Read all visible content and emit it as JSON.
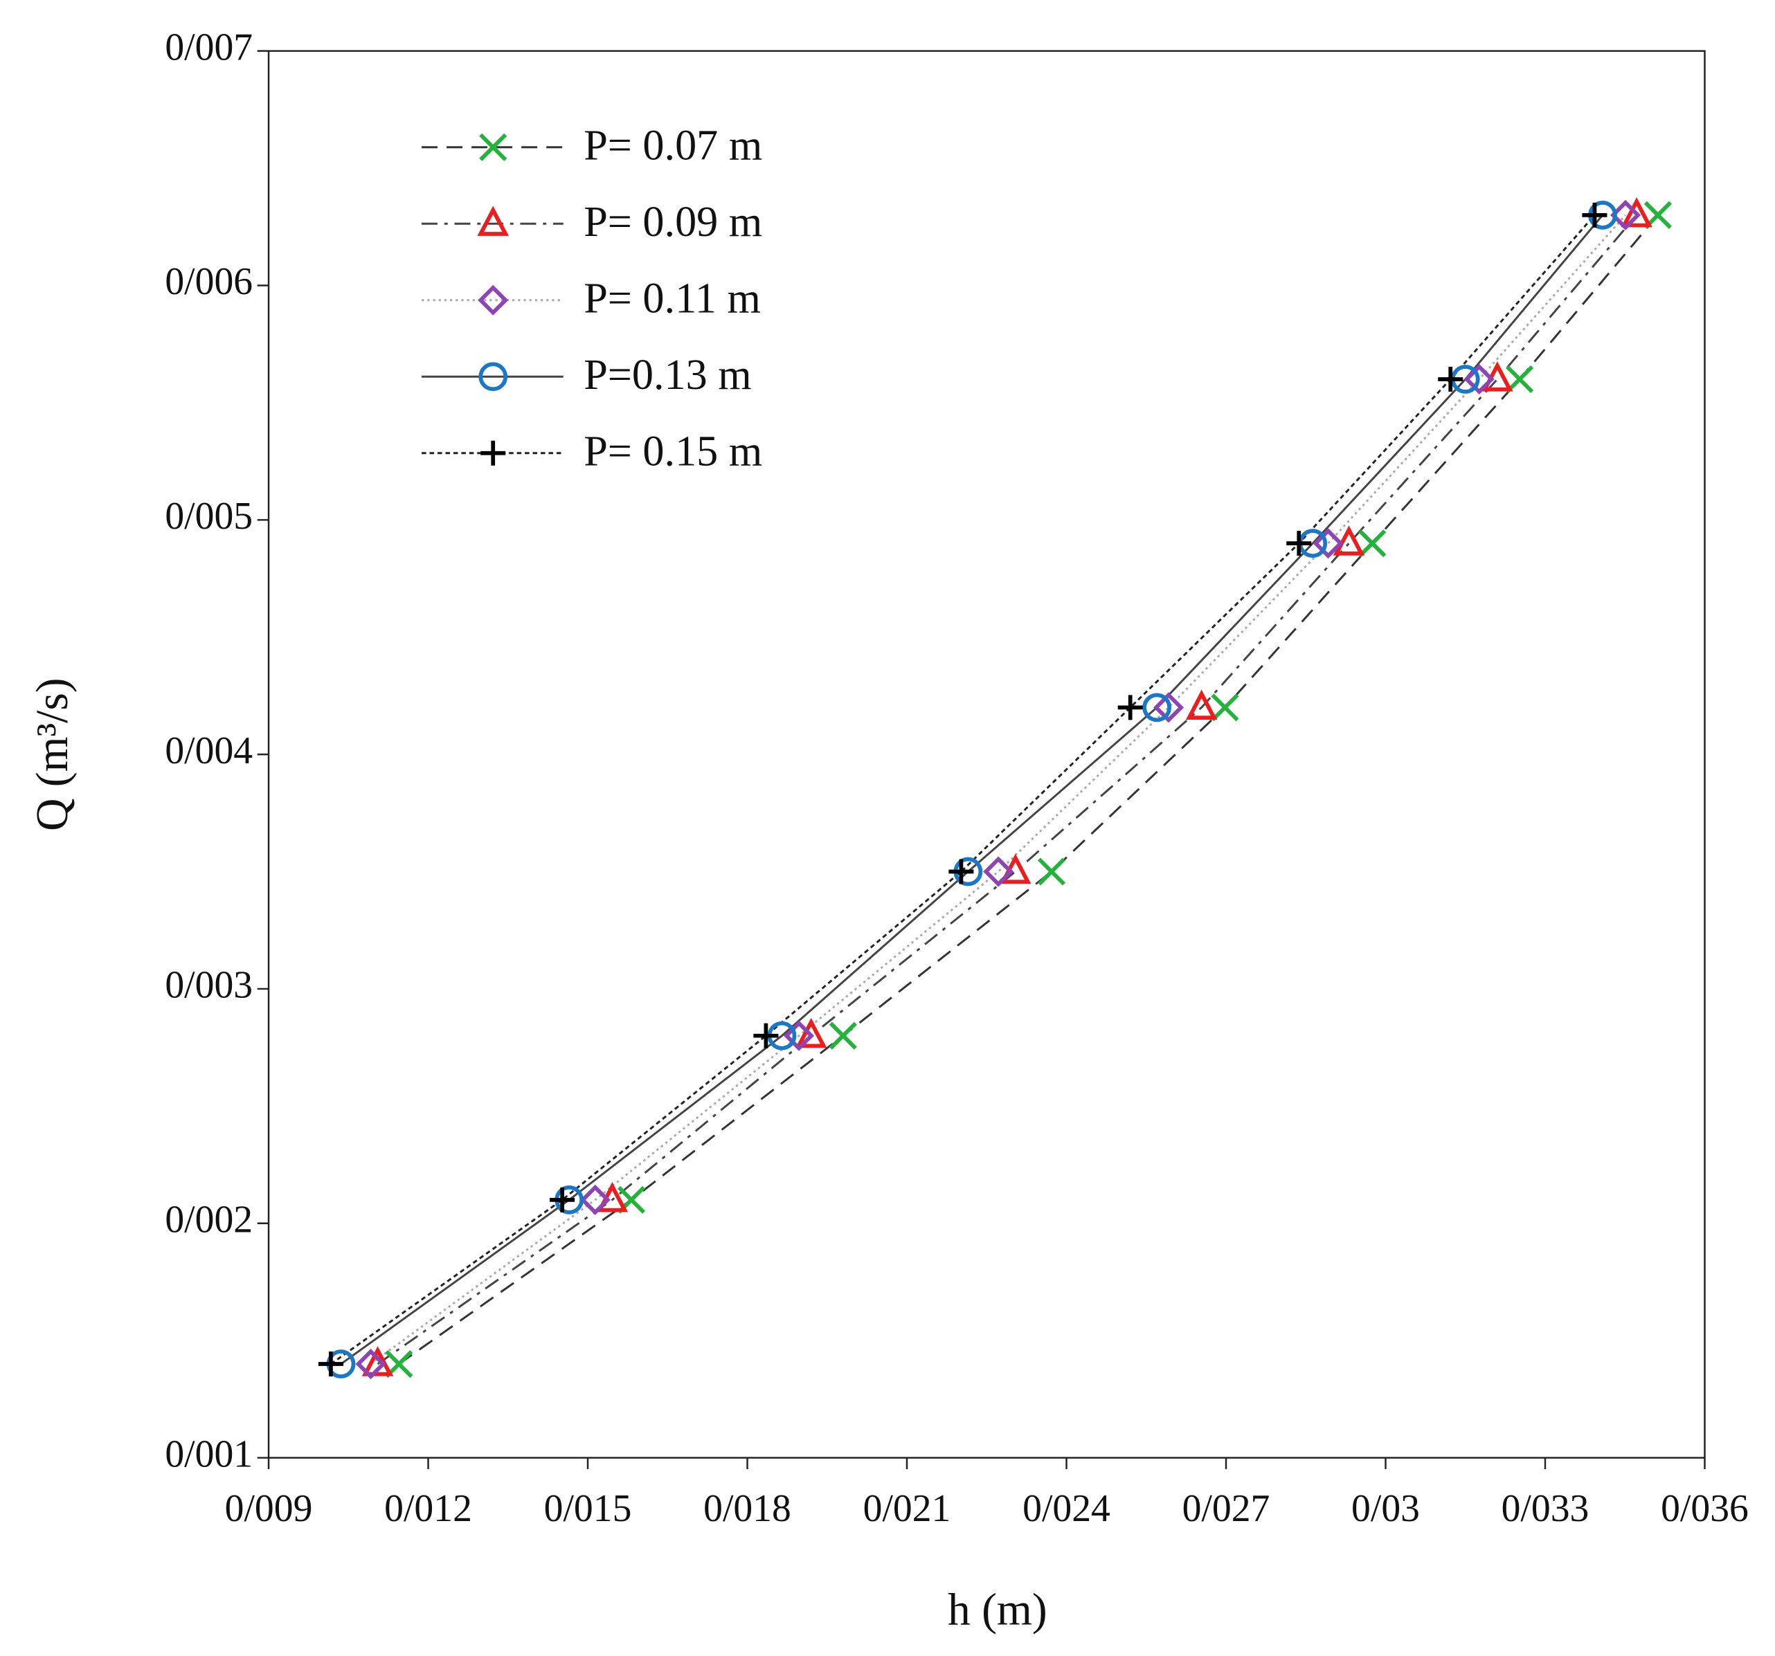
{
  "chart_data": {
    "type": "line",
    "xlabel": "h (m)",
    "ylabel": "Q (m³/s)",
    "xlim": [
      0.009,
      0.036
    ],
    "xticks": [
      {
        "value": 0.009,
        "label": "0/009"
      },
      {
        "value": 0.012,
        "label": "0/012"
      },
      {
        "value": 0.015,
        "label": "0/015"
      },
      {
        "value": 0.018,
        "label": "0/018"
      },
      {
        "value": 0.021,
        "label": "0/021"
      },
      {
        "value": 0.024,
        "label": "0/024"
      },
      {
        "value": 0.027,
        "label": "0/027"
      },
      {
        "value": 0.03,
        "label": "0/03"
      },
      {
        "value": 0.033,
        "label": "0/033"
      },
      {
        "value": 0.036,
        "label": "0/036"
      }
    ],
    "ylim": [
      0.001,
      0.007
    ],
    "yticks": [
      {
        "value": 0.001,
        "label": "0/001"
      },
      {
        "value": 0.002,
        "label": "0/002"
      },
      {
        "value": 0.003,
        "label": "0/003"
      },
      {
        "value": 0.004,
        "label": "0/004"
      },
      {
        "value": 0.005,
        "label": "0/005"
      },
      {
        "value": 0.006,
        "label": "0/006"
      },
      {
        "value": 0.007,
        "label": "0/007"
      }
    ],
    "legend": "upper left",
    "series": [
      {
        "name": "P= 0.07 m",
        "color": "#22b33a",
        "marker": "x",
        "linestyle": "dashed",
        "line_color": "#333333",
        "x": [
          0.01145,
          0.01582,
          0.0198,
          0.02372,
          0.02698,
          0.02975,
          0.03252,
          0.03512
        ],
        "values": [
          0.0014,
          0.0021,
          0.0028,
          0.0035,
          0.0042,
          0.0049,
          0.0056,
          0.0063
        ]
      },
      {
        "name": "P= 0.09 m",
        "color": "#ee1c1c",
        "marker": "triangle",
        "linestyle": "dashdot",
        "line_color": "#444444",
        "x": [
          0.01105,
          0.01546,
          0.0192,
          0.02304,
          0.02654,
          0.02931,
          0.0321,
          0.03472
        ],
        "values": [
          0.0014,
          0.0021,
          0.0028,
          0.0035,
          0.0042,
          0.0049,
          0.0056,
          0.0063
        ]
      },
      {
        "name": "P= 0.11 m",
        "color": "#8e44b4",
        "marker": "diamond",
        "linestyle": "dotted",
        "line_color": "#aaaaaa",
        "x": [
          0.01092,
          0.01514,
          0.01897,
          0.02272,
          0.02592,
          0.02892,
          0.03176,
          0.03451
        ],
        "values": [
          0.0014,
          0.0021,
          0.0028,
          0.0035,
          0.0042,
          0.0049,
          0.0056,
          0.0063
        ]
      },
      {
        "name": "P=0.13 m",
        "color": "#1a78c8",
        "marker": "circle",
        "linestyle": "solid",
        "line_color": "#444444",
        "x": [
          0.01036,
          0.01465,
          0.01865,
          0.02215,
          0.0257,
          0.02863,
          0.0315,
          0.03408
        ],
        "values": [
          0.0014,
          0.0021,
          0.0028,
          0.0035,
          0.0042,
          0.0049,
          0.0056,
          0.0063
        ]
      },
      {
        "name": "P= 0.15 m",
        "color": "#000000",
        "marker": "plus",
        "linestyle": "fine-dotted",
        "line_color": "#222222",
        "x": [
          0.01017,
          0.01452,
          0.01835,
          0.02202,
          0.0252,
          0.02837,
          0.03122,
          0.03393
        ],
        "values": [
          0.0014,
          0.0021,
          0.0028,
          0.0035,
          0.0042,
          0.0049,
          0.0056,
          0.0063
        ]
      }
    ]
  }
}
